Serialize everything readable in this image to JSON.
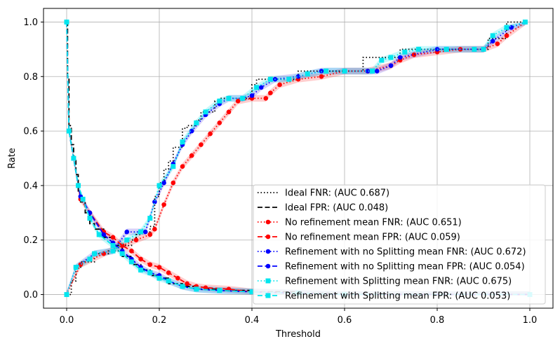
{
  "chart_data": {
    "type": "line",
    "title": "",
    "xlabel": "Threshold",
    "ylabel": "Rate",
    "xlim": [
      -0.05,
      1.05
    ],
    "ylim": [
      -0.05,
      1.05
    ],
    "grid": true,
    "legend_position": "bottom-right",
    "xticks": [
      {
        "value": 0.0,
        "label": "0.0"
      },
      {
        "value": 0.2,
        "label": "0.2"
      },
      {
        "value": 0.4,
        "label": "0.4"
      },
      {
        "value": 0.6,
        "label": "0.6"
      },
      {
        "value": 0.8,
        "label": "0.8"
      },
      {
        "value": 1.0,
        "label": "1.0"
      }
    ],
    "yticks": [
      {
        "value": 0.0,
        "label": "0.0"
      },
      {
        "value": 0.2,
        "label": "0.2"
      },
      {
        "value": 0.4,
        "label": "0.4"
      },
      {
        "value": 0.6,
        "label": "0.6"
      },
      {
        "value": 0.8,
        "label": "0.8"
      },
      {
        "value": 1.0,
        "label": "1.0"
      }
    ],
    "series": [
      {
        "name": "Ideal FNR: (AUC 0.687)",
        "color": "#000000",
        "dash": "dotted",
        "marker": "none",
        "step": true,
        "points": [
          [
            0,
            0
          ],
          [
            0.01,
            0.05
          ],
          [
            0.02,
            0.1
          ],
          [
            0.03,
            0.12
          ],
          [
            0.06,
            0.15
          ],
          [
            0.09,
            0.16
          ],
          [
            0.1,
            0.16
          ],
          [
            0.12,
            0.18
          ],
          [
            0.14,
            0.2
          ],
          [
            0.15,
            0.22
          ],
          [
            0.16,
            0.23
          ],
          [
            0.18,
            0.25
          ],
          [
            0.19,
            0.36
          ],
          [
            0.2,
            0.41
          ],
          [
            0.21,
            0.46
          ],
          [
            0.22,
            0.49
          ],
          [
            0.23,
            0.54
          ],
          [
            0.25,
            0.61
          ],
          [
            0.26,
            0.62
          ],
          [
            0.28,
            0.64
          ],
          [
            0.29,
            0.67
          ],
          [
            0.32,
            0.71
          ],
          [
            0.33,
            0.72
          ],
          [
            0.39,
            0.72
          ],
          [
            0.4,
            0.77
          ],
          [
            0.41,
            0.79
          ],
          [
            0.44,
            0.79
          ],
          [
            0.5,
            0.82
          ],
          [
            0.52,
            0.82
          ],
          [
            0.55,
            0.82
          ],
          [
            0.63,
            0.82
          ],
          [
            0.64,
            0.87
          ],
          [
            0.66,
            0.87
          ],
          [
            0.71,
            0.87
          ],
          [
            0.72,
            0.9
          ],
          [
            0.79,
            0.9
          ],
          [
            0.9,
            0.9
          ],
          [
            0.91,
            0.94
          ],
          [
            0.94,
            0.94
          ],
          [
            0.95,
            1.0
          ],
          [
            0.99,
            1.0
          ]
        ]
      },
      {
        "name": "Ideal FPR: (AUC 0.048)",
        "color": "#000000",
        "dash": "dashed",
        "marker": "none",
        "step": true,
        "points": [
          [
            0,
            1
          ],
          [
            0.002,
            0.8
          ],
          [
            0.005,
            0.62
          ],
          [
            0.01,
            0.55
          ],
          [
            0.015,
            0.5
          ],
          [
            0.02,
            0.44
          ],
          [
            0.025,
            0.38
          ],
          [
            0.03,
            0.34
          ],
          [
            0.04,
            0.3
          ],
          [
            0.05,
            0.26
          ],
          [
            0.06,
            0.24
          ],
          [
            0.08,
            0.21
          ],
          [
            0.1,
            0.18
          ],
          [
            0.12,
            0.14
          ],
          [
            0.14,
            0.11
          ],
          [
            0.16,
            0.09
          ],
          [
            0.18,
            0.07
          ],
          [
            0.2,
            0.06
          ],
          [
            0.22,
            0.04
          ],
          [
            0.25,
            0.03
          ],
          [
            0.28,
            0.02
          ],
          [
            0.33,
            0.015
          ],
          [
            0.4,
            0.01
          ],
          [
            0.5,
            0.005
          ],
          [
            0.6,
            0.002
          ],
          [
            0.7,
            0.0
          ],
          [
            1.0,
            0.0
          ]
        ]
      },
      {
        "name": "No refinement mean FNR: (AUC 0.651)",
        "color": "#ff0000",
        "dash": "dotted",
        "marker": "circle",
        "points": [
          [
            0,
            0
          ],
          [
            0.03,
            0.11
          ],
          [
            0.08,
            0.15
          ],
          [
            0.12,
            0.18
          ],
          [
            0.15,
            0.2
          ],
          [
            0.18,
            0.22
          ],
          [
            0.19,
            0.24
          ],
          [
            0.21,
            0.33
          ],
          [
            0.23,
            0.41
          ],
          [
            0.25,
            0.47
          ],
          [
            0.27,
            0.51
          ],
          [
            0.29,
            0.55
          ],
          [
            0.31,
            0.59
          ],
          [
            0.33,
            0.63
          ],
          [
            0.35,
            0.67
          ],
          [
            0.37,
            0.71
          ],
          [
            0.4,
            0.72
          ],
          [
            0.43,
            0.72
          ],
          [
            0.44,
            0.74
          ],
          [
            0.46,
            0.77
          ],
          [
            0.5,
            0.79
          ],
          [
            0.55,
            0.8
          ],
          [
            0.6,
            0.82
          ],
          [
            0.65,
            0.82
          ],
          [
            0.7,
            0.84
          ],
          [
            0.72,
            0.86
          ],
          [
            0.75,
            0.88
          ],
          [
            0.8,
            0.89
          ],
          [
            0.85,
            0.9
          ],
          [
            0.9,
            0.9
          ],
          [
            0.93,
            0.92
          ],
          [
            0.95,
            0.95
          ],
          [
            0.99,
            1.0
          ]
        ]
      },
      {
        "name": "No refinement mean FPR: (AUC 0.059)",
        "color": "#ff0000",
        "dash": "dashed",
        "marker": "circle",
        "points": [
          [
            0,
            1
          ],
          [
            0.005,
            0.6
          ],
          [
            0.015,
            0.5
          ],
          [
            0.025,
            0.4
          ],
          [
            0.03,
            0.35
          ],
          [
            0.05,
            0.3
          ],
          [
            0.08,
            0.23
          ],
          [
            0.1,
            0.21
          ],
          [
            0.12,
            0.18
          ],
          [
            0.14,
            0.16
          ],
          [
            0.16,
            0.13
          ],
          [
            0.18,
            0.11
          ],
          [
            0.2,
            0.1
          ],
          [
            0.22,
            0.08
          ],
          [
            0.24,
            0.06
          ],
          [
            0.26,
            0.04
          ],
          [
            0.28,
            0.03
          ],
          [
            0.3,
            0.025
          ],
          [
            0.35,
            0.02
          ],
          [
            0.4,
            0.01
          ],
          [
            0.5,
            0.005
          ],
          [
            0.6,
            0.0
          ],
          [
            1.0,
            0.0
          ]
        ]
      },
      {
        "name": "Refinement with no Splitting mean FNR: (AUC 0.672)",
        "color": "#0000ff",
        "dash": "dotted",
        "marker": "circle",
        "points": [
          [
            0,
            0
          ],
          [
            0.02,
            0.1
          ],
          [
            0.06,
            0.15
          ],
          [
            0.1,
            0.16
          ],
          [
            0.13,
            0.23
          ],
          [
            0.17,
            0.23
          ],
          [
            0.19,
            0.34
          ],
          [
            0.21,
            0.41
          ],
          [
            0.23,
            0.48
          ],
          [
            0.25,
            0.55
          ],
          [
            0.27,
            0.6
          ],
          [
            0.3,
            0.66
          ],
          [
            0.33,
            0.7
          ],
          [
            0.35,
            0.72
          ],
          [
            0.38,
            0.72
          ],
          [
            0.4,
            0.73
          ],
          [
            0.42,
            0.76
          ],
          [
            0.45,
            0.79
          ],
          [
            0.5,
            0.8
          ],
          [
            0.55,
            0.82
          ],
          [
            0.6,
            0.82
          ],
          [
            0.65,
            0.82
          ],
          [
            0.67,
            0.82
          ],
          [
            0.7,
            0.84
          ],
          [
            0.72,
            0.87
          ],
          [
            0.8,
            0.9
          ],
          [
            0.9,
            0.9
          ],
          [
            0.92,
            0.93
          ],
          [
            0.96,
            0.98
          ],
          [
            0.99,
            1.0
          ]
        ]
      },
      {
        "name": "Refinement with no Splitting mean FPR: (AUC 0.054)",
        "color": "#0000ff",
        "dash": "dashed",
        "marker": "circle",
        "points": [
          [
            0,
            1
          ],
          [
            0.005,
            0.6
          ],
          [
            0.015,
            0.5
          ],
          [
            0.025,
            0.4
          ],
          [
            0.03,
            0.36
          ],
          [
            0.05,
            0.3
          ],
          [
            0.08,
            0.22
          ],
          [
            0.1,
            0.19
          ],
          [
            0.12,
            0.16
          ],
          [
            0.14,
            0.13
          ],
          [
            0.16,
            0.1
          ],
          [
            0.18,
            0.08
          ],
          [
            0.2,
            0.07
          ],
          [
            0.22,
            0.05
          ],
          [
            0.25,
            0.03
          ],
          [
            0.28,
            0.02
          ],
          [
            0.33,
            0.015
          ],
          [
            0.4,
            0.01
          ],
          [
            0.5,
            0.005
          ],
          [
            0.6,
            0.0
          ],
          [
            1.0,
            0.0
          ]
        ]
      },
      {
        "name": "Refinement with Splitting mean FNR: (AUC 0.675)",
        "color": "#00e5ee",
        "dash": "dotted",
        "marker": "square",
        "points": [
          [
            0,
            0
          ],
          [
            0.02,
            0.1
          ],
          [
            0.05,
            0.13
          ],
          [
            0.06,
            0.15
          ],
          [
            0.1,
            0.16
          ],
          [
            0.13,
            0.2
          ],
          [
            0.16,
            0.23
          ],
          [
            0.18,
            0.28
          ],
          [
            0.2,
            0.4
          ],
          [
            0.23,
            0.47
          ],
          [
            0.25,
            0.56
          ],
          [
            0.28,
            0.63
          ],
          [
            0.3,
            0.67
          ],
          [
            0.33,
            0.71
          ],
          [
            0.35,
            0.72
          ],
          [
            0.38,
            0.72
          ],
          [
            0.41,
            0.76
          ],
          [
            0.44,
            0.79
          ],
          [
            0.48,
            0.79
          ],
          [
            0.52,
            0.81
          ],
          [
            0.56,
            0.82
          ],
          [
            0.6,
            0.82
          ],
          [
            0.66,
            0.82
          ],
          [
            0.68,
            0.86
          ],
          [
            0.7,
            0.87
          ],
          [
            0.73,
            0.89
          ],
          [
            0.76,
            0.9
          ],
          [
            0.82,
            0.9
          ],
          [
            0.88,
            0.9
          ],
          [
            0.9,
            0.9
          ],
          [
            0.92,
            0.95
          ],
          [
            0.95,
            0.98
          ],
          [
            0.99,
            1.0
          ]
        ]
      },
      {
        "name": "Refinement with Splitting mean FPR: (AUC 0.053)",
        "color": "#00e5ee",
        "dash": "dashed",
        "marker": "square",
        "points": [
          [
            0,
            1
          ],
          [
            0.005,
            0.6
          ],
          [
            0.015,
            0.5
          ],
          [
            0.025,
            0.4
          ],
          [
            0.035,
            0.35
          ],
          [
            0.05,
            0.28
          ],
          [
            0.07,
            0.22
          ],
          [
            0.1,
            0.18
          ],
          [
            0.12,
            0.15
          ],
          [
            0.14,
            0.12
          ],
          [
            0.16,
            0.09
          ],
          [
            0.18,
            0.08
          ],
          [
            0.2,
            0.06
          ],
          [
            0.22,
            0.05
          ],
          [
            0.25,
            0.03
          ],
          [
            0.28,
            0.02
          ],
          [
            0.33,
            0.015
          ],
          [
            0.4,
            0.01
          ],
          [
            0.5,
            0.005
          ],
          [
            0.6,
            0.0
          ],
          [
            1.0,
            0.0
          ]
        ]
      }
    ]
  }
}
